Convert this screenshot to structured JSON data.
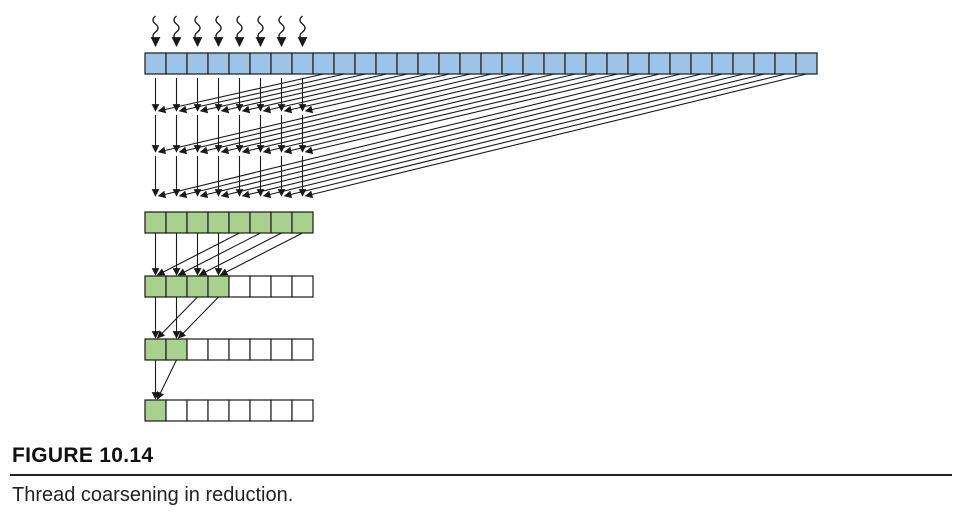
{
  "figure": {
    "label": "FIGURE 10.14",
    "caption": "Thread coarsening in reduction."
  },
  "diagram": {
    "thread_count": 8,
    "input_array_length": 32,
    "coarsening_steps": 3,
    "output_array_length": 8,
    "tree_levels": [
      {
        "active": 8
      },
      {
        "active": 4
      },
      {
        "active": 2
      },
      {
        "active": 1
      }
    ],
    "colors": {
      "input_cell": "#9dc3e6",
      "active_cell": "#a9d18e",
      "empty_cell": "#ffffff",
      "stroke": "#1a1a1a"
    }
  }
}
